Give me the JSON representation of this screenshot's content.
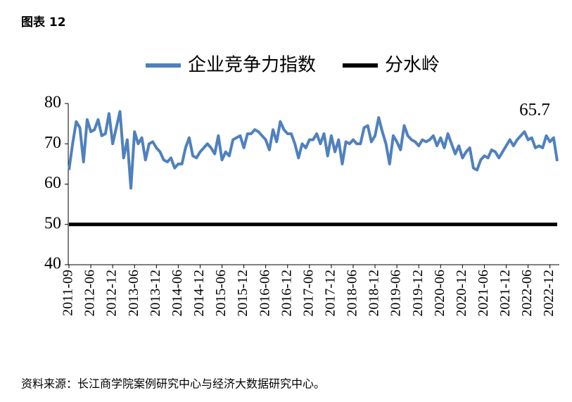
{
  "chart_data": {
    "type": "line",
    "title": "图表 12",
    "source": "资料来源：长江商学院案例研究中心与经济大数据研究中心。",
    "annotation": "65.7",
    "categories": [
      "2011-09",
      null,
      null,
      null,
      null,
      null,
      "2012-06",
      null,
      null,
      null,
      null,
      null,
      "2012-12",
      null,
      null,
      null,
      null,
      null,
      "2013-06",
      null,
      null,
      null,
      null,
      null,
      "2013-12",
      null,
      null,
      null,
      null,
      null,
      "2014-06",
      null,
      null,
      null,
      null,
      null,
      "2014-12",
      null,
      null,
      null,
      null,
      null,
      "2015-06",
      null,
      null,
      null,
      null,
      null,
      "2015-12",
      null,
      null,
      null,
      null,
      null,
      "2016-06",
      null,
      null,
      null,
      null,
      null,
      "2016-12",
      null,
      null,
      null,
      null,
      null,
      "2017-06",
      null,
      null,
      null,
      null,
      null,
      "2017-12",
      null,
      null,
      null,
      null,
      null,
      "2018-06",
      null,
      null,
      null,
      null,
      null,
      "2018-12",
      null,
      null,
      null,
      null,
      null,
      "2019-06",
      null,
      null,
      null,
      null,
      null,
      "2019-12",
      null,
      null,
      null,
      null,
      null,
      "2020-06",
      null,
      null,
      null,
      null,
      null,
      "2020-12",
      null,
      null,
      null,
      null,
      null,
      "2021-06",
      null,
      null,
      null,
      null,
      null,
      "2021-12",
      null,
      null,
      null,
      null,
      null,
      "2022-06",
      null,
      null,
      null,
      null,
      null,
      "2022-12",
      null,
      null
    ],
    "series": [
      {
        "name": "企业竞争力指数",
        "color": "#4f81bd",
        "values": [
          63.5,
          70,
          75.5,
          74,
          65.5,
          76,
          73,
          73.5,
          76,
          72,
          72.5,
          77.5,
          70,
          74,
          78,
          66.5,
          71,
          59,
          73,
          70,
          71.5,
          66,
          70,
          70.5,
          69,
          68,
          66,
          65.5,
          66.5,
          64,
          65,
          65,
          69,
          71.5,
          67,
          66.5,
          68,
          69,
          70,
          69,
          67.5,
          72,
          66,
          68,
          67,
          71,
          71.5,
          72,
          69,
          72.5,
          72.5,
          73.5,
          73,
          72,
          71,
          68.5,
          73.5,
          70.5,
          75.5,
          73.5,
          72.5,
          72.5,
          70,
          66.5,
          70,
          69,
          71,
          71,
          72.5,
          70,
          72.5,
          67,
          72,
          68,
          71,
          65,
          70.5,
          70,
          71,
          70,
          70,
          74,
          74.5,
          70.5,
          72,
          76.5,
          73,
          70,
          65,
          72,
          70.5,
          68.5,
          74.5,
          72,
          71,
          70.5,
          69.5,
          71,
          70.5,
          71,
          72,
          69.5,
          71.5,
          69,
          72.5,
          70,
          67.5,
          69.5,
          66.5,
          68,
          69,
          64,
          63.5,
          66,
          67,
          66.5,
          68.5,
          68,
          66.5,
          68,
          69.5,
          71,
          69.5,
          71,
          72,
          73,
          71,
          71.5,
          69,
          69.5,
          69,
          72,
          70.5,
          71.5,
          65.7
        ]
      },
      {
        "name": "分水岭",
        "color": "#000000",
        "values": [
          50,
          50,
          50,
          50,
          50,
          50,
          50,
          50,
          50,
          50,
          50,
          50,
          50,
          50,
          50,
          50,
          50,
          50,
          50,
          50,
          50,
          50,
          50,
          50,
          50,
          50,
          50,
          50,
          50,
          50,
          50,
          50,
          50,
          50,
          50,
          50,
          50,
          50,
          50,
          50,
          50,
          50,
          50,
          50,
          50,
          50,
          50,
          50,
          50,
          50,
          50,
          50,
          50,
          50,
          50,
          50,
          50,
          50,
          50,
          50,
          50,
          50,
          50,
          50,
          50,
          50,
          50,
          50,
          50,
          50,
          50,
          50,
          50,
          50,
          50,
          50,
          50,
          50,
          50,
          50,
          50,
          50,
          50,
          50,
          50,
          50,
          50,
          50,
          50,
          50,
          50,
          50,
          50,
          50,
          50,
          50,
          50,
          50,
          50,
          50,
          50,
          50,
          50,
          50,
          50,
          50,
          50,
          50,
          50,
          50,
          50,
          50,
          50,
          50,
          50,
          50,
          50,
          50,
          50,
          50,
          50,
          50,
          50,
          50,
          50,
          50,
          50,
          50,
          50,
          50,
          50,
          50,
          50,
          50,
          50
        ]
      }
    ],
    "ylim": [
      40,
      80
    ],
    "yticks": [
      40,
      50,
      60,
      70,
      80
    ]
  }
}
